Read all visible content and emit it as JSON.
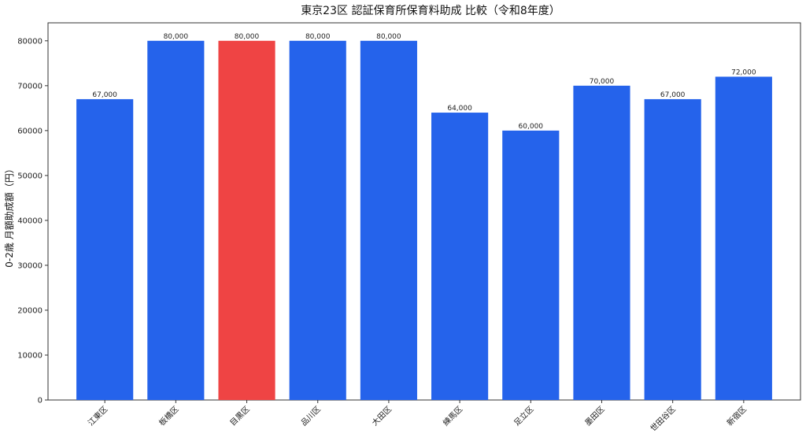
{
  "chart_data": {
    "type": "bar",
    "title": "東京23区 認証保育所保育料助成 比較（令和8年度）",
    "xlabel": "",
    "ylabel": "0-2歳 月額助成額（円）",
    "categories": [
      "江東区",
      "板橋区",
      "目黒区",
      "品川区",
      "大田区",
      "練馬区",
      "足立区",
      "墨田区",
      "世田谷区",
      "新宿区"
    ],
    "values": [
      67000,
      80000,
      80000,
      80000,
      80000,
      64000,
      60000,
      70000,
      67000,
      72000
    ],
    "data_labels": [
      "67,000",
      "80,000",
      "80,000",
      "80,000",
      "80,000",
      "64,000",
      "60,000",
      "70,000",
      "67,000",
      "72,000"
    ],
    "highlight_index": 2,
    "ylim": [
      0,
      84000
    ],
    "yticks": [
      0,
      10000,
      20000,
      30000,
      40000,
      50000,
      60000,
      70000,
      80000
    ],
    "grid": false,
    "legend": "none",
    "colors": {
      "bar": "#2563eb",
      "highlight": "#ef4444",
      "axis": "#333333"
    }
  }
}
